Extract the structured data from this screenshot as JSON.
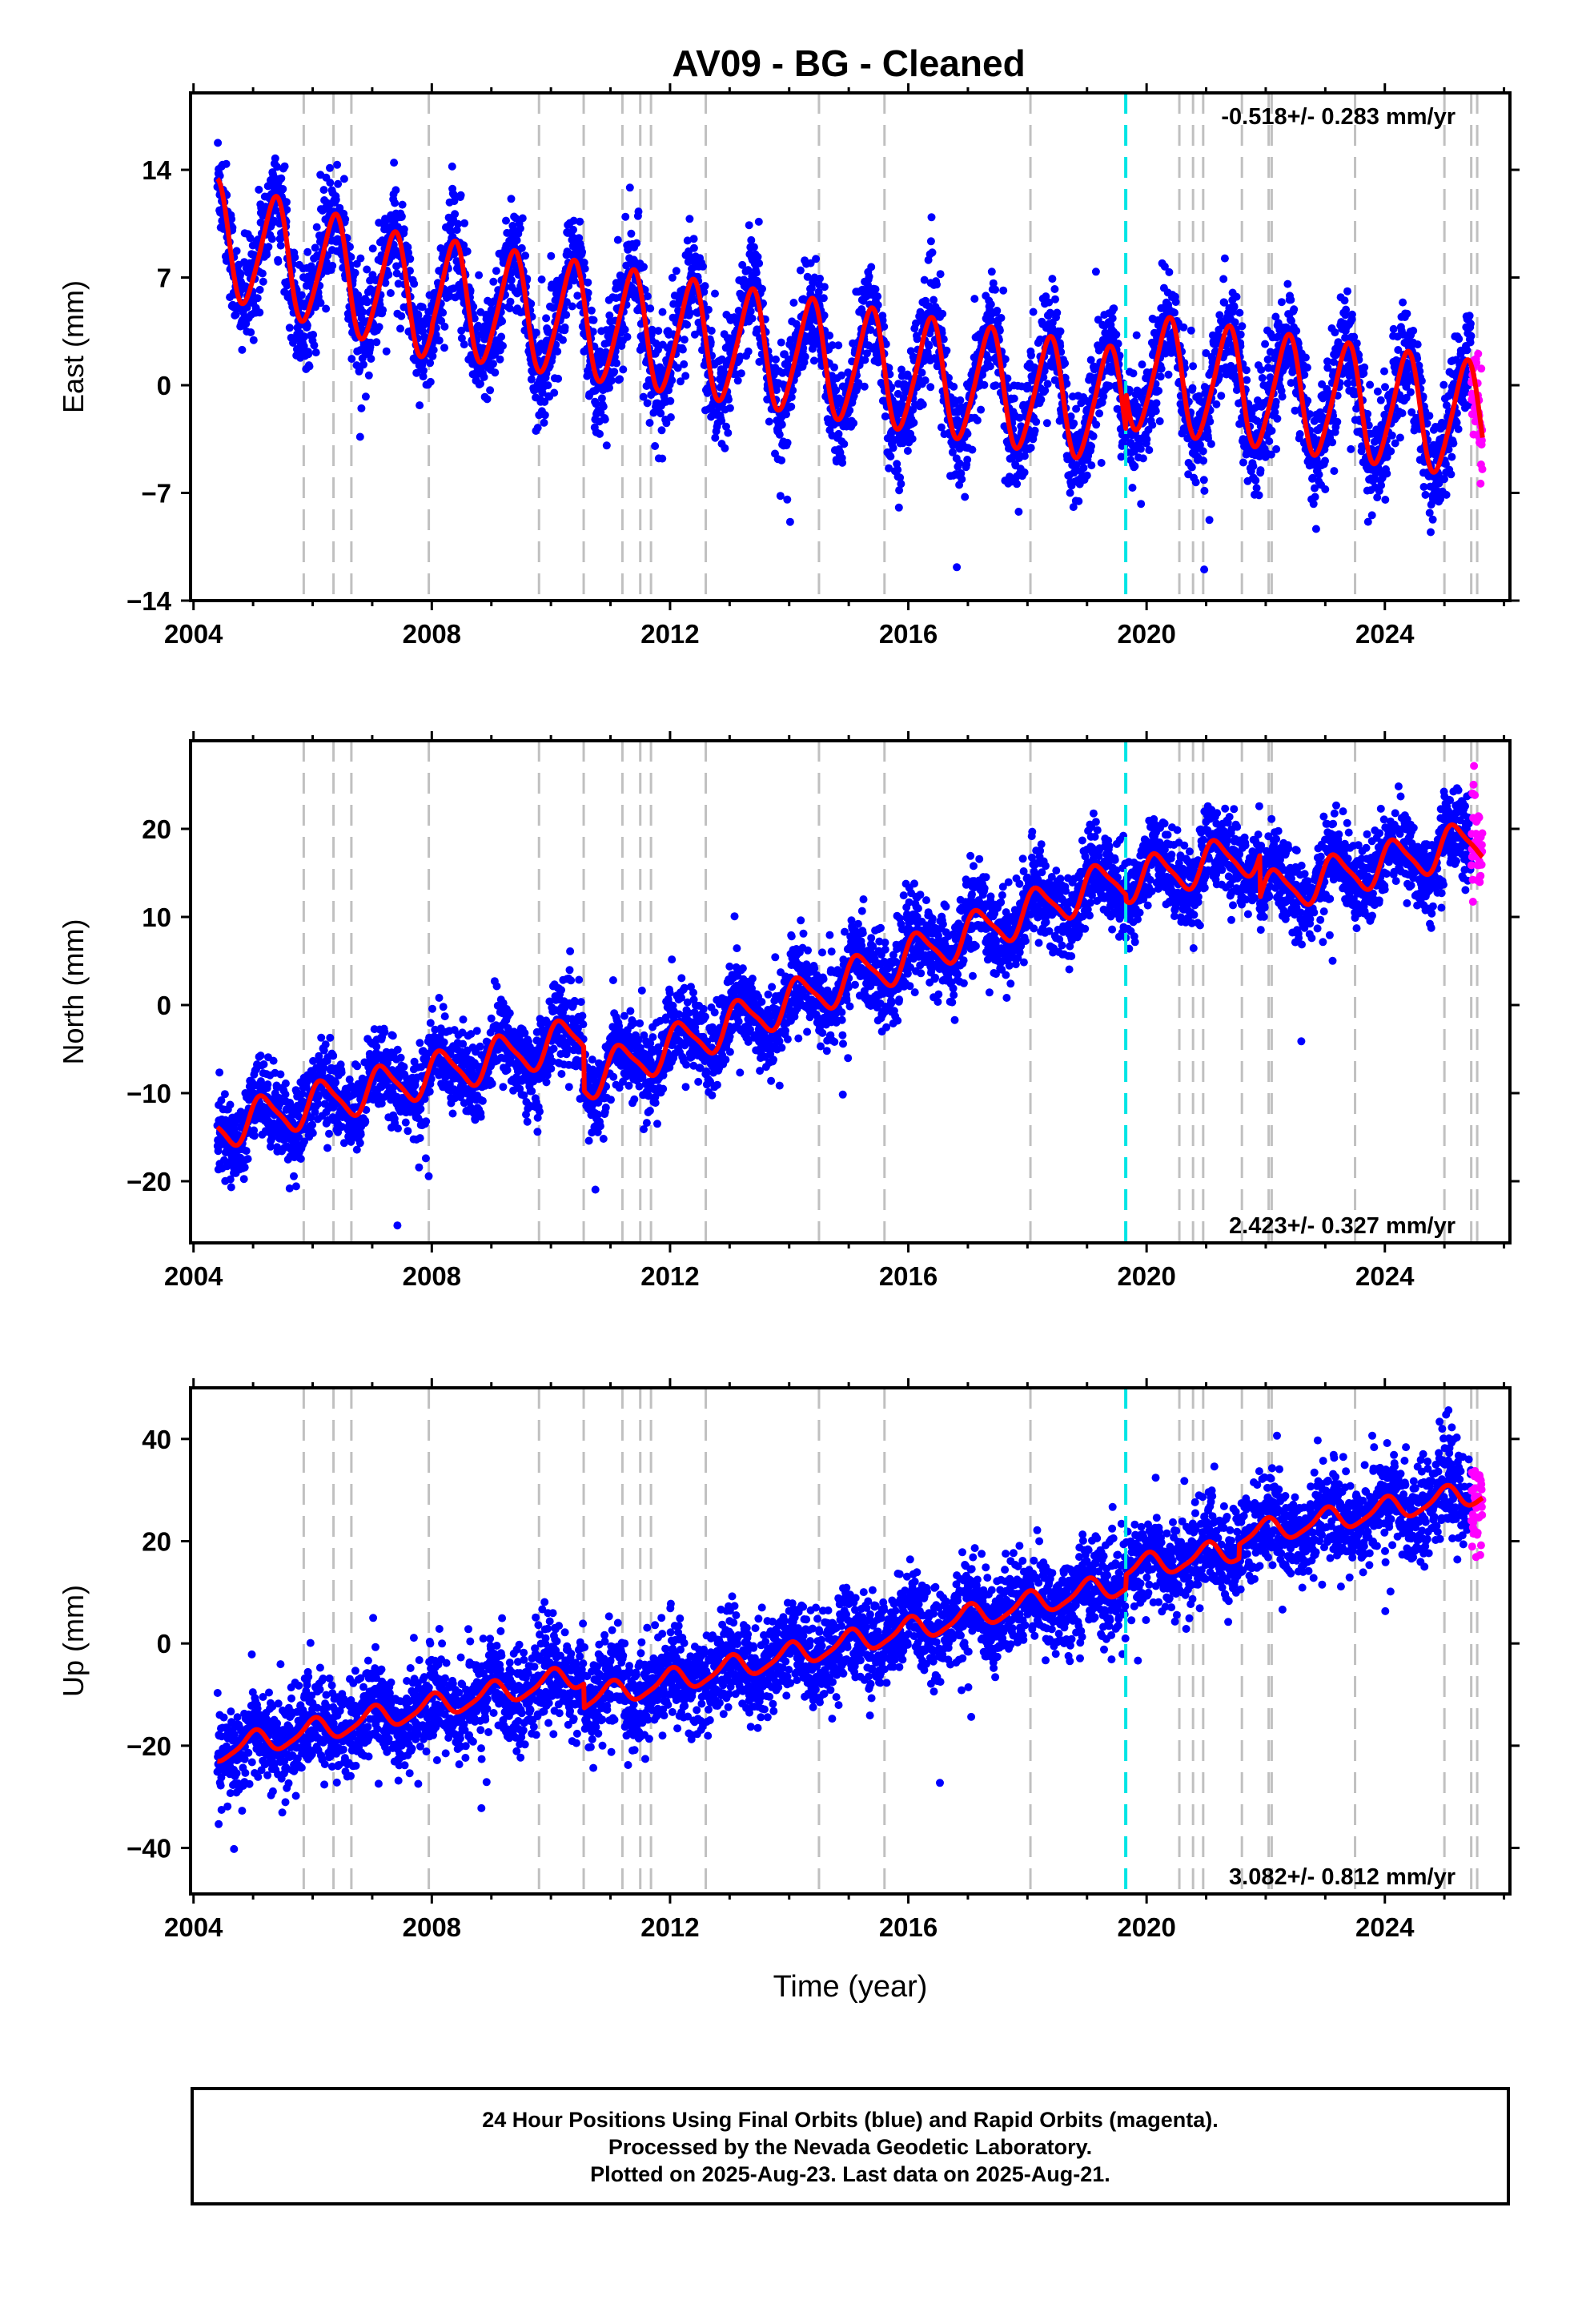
{
  "title": "AV09  - BG - Cleaned",
  "xlabel": "Time (year)",
  "footer": {
    "line1": "24 Hour Positions Using Final Orbits (blue) and Rapid Orbits (magenta).",
    "line2": "Processed by the Nevada Geodetic Laboratory.",
    "line3": "Plotted on 2025-Aug-23. Last data on 2025-Aug-21."
  },
  "colors": {
    "final": "#0000ff",
    "rapid": "#ff00ff",
    "model": "#ff0000",
    "event": "#c0c0c0",
    "antenna": "#00e5e5"
  },
  "chart_data": {
    "type": "scatter",
    "xlim": [
      2003.95,
      2026.1
    ],
    "x_ticks": [
      2004,
      2008,
      2012,
      2016,
      2020,
      2024
    ],
    "event_lines": [
      2005.85,
      2006.35,
      2006.65,
      2007.95,
      2009.8,
      2010.55,
      2011.2,
      2011.5,
      2011.68,
      2012.6,
      2014.5,
      2015.6,
      2018.05,
      2020.55,
      2020.78,
      2020.95,
      2021.6,
      2022.05,
      2022.1,
      2023.5,
      2025.0,
      2025.45,
      2025.55
    ],
    "antenna_change": 2019.65,
    "data_start": 2004.4,
    "data_end": 2025.64,
    "rapid_start": 2025.45,
    "panels": [
      {
        "ylabel": "East (mm)",
        "ylim": [
          -14,
          19
        ],
        "y_ticks": [
          14,
          7,
          0,
          -7,
          -14
        ],
        "y_tick_labels": [
          "14",
          "7",
          "0",
          "−7",
          "−14"
        ],
        "rate_label": "-0.518+/- 0.283 mm/yr",
        "rate_position": "top-right",
        "model": {
          "segments": [
            {
              "start": 2004.4,
              "end": 2008.0,
              "offset": 9.5,
              "slope": -1.15
            },
            {
              "start": 2008.0,
              "end": 2019.65,
              "offset": 5.7,
              "slope": -0.62
            },
            {
              "start": 2019.65,
              "end": 2025.64,
              "offset": 0.9,
              "slope": -0.55
            }
          ],
          "annual_amplitude": 3.7,
          "annual_phase": 5.6,
          "semiannual_amplitude": 0.5,
          "semiannual_phase": 2.0
        },
        "scatter_sd": 1.7,
        "outlier_sd": 4.0
      },
      {
        "ylabel": "North (mm)",
        "ylim": [
          -27,
          30
        ],
        "y_ticks": [
          20,
          10,
          0,
          -10,
          -20
        ],
        "y_tick_labels": [
          "20",
          "10",
          "0",
          "−10",
          "−20"
        ],
        "rate_label": "2.423+/- 0.327 mm/yr",
        "rate_position": "bottom-right",
        "model": {
          "segments": [
            {
              "start": 2004.4,
              "end": 2010.55,
              "offset": -14.0,
              "slope": 1.7
            },
            {
              "start": 2010.55,
              "end": 2019.65,
              "offset": -8.5,
              "slope": 2.55
            },
            {
              "start": 2019.65,
              "end": 2021.9,
              "offset": 14.0,
              "slope": 1.5
            },
            {
              "start": 2021.9,
              "end": 2025.64,
              "offset": 12.5,
              "slope": 1.7
            }
          ],
          "annual_amplitude": 2.3,
          "annual_phase": 0.5,
          "semiannual_amplitude": 0.5,
          "semiannual_phase": 1.0
        },
        "scatter_sd": 2.4,
        "outlier_sd": 5.0
      },
      {
        "ylabel": "Up (mm)",
        "ylim": [
          -49,
          50
        ],
        "y_ticks": [
          40,
          20,
          0,
          -20,
          -40
        ],
        "y_tick_labels": [
          "40",
          "20",
          "0",
          "−20",
          "−40"
        ],
        "rate_label": "3.082+/- 0.812 mm/yr",
        "rate_position": "bottom-right",
        "model": {
          "segments": [
            {
              "start": 2004.4,
              "end": 2010.55,
              "offset": -21.0,
              "slope": 2.4
            },
            {
              "start": 2010.55,
              "end": 2019.65,
              "offset": -11.0,
              "slope": 2.5
            },
            {
              "start": 2019.65,
              "end": 2021.55,
              "offset": 14.5,
              "slope": 2.0
            },
            {
              "start": 2021.55,
              "end": 2025.64,
              "offset": 21.0,
              "slope": 2.1
            }
          ],
          "annual_amplitude": 2.2,
          "annual_phase": 1.5,
          "semiannual_amplitude": 0.5,
          "semiannual_phase": 0.5
        },
        "scatter_sd": 4.6,
        "outlier_sd": 9.0
      }
    ]
  }
}
